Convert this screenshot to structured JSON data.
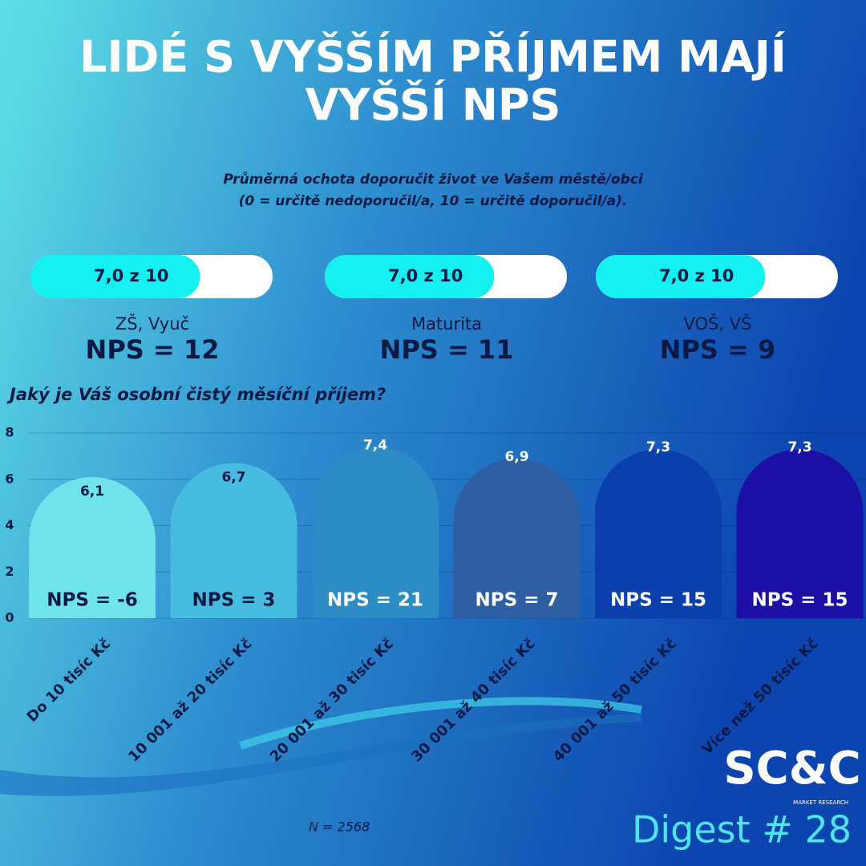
{
  "header": {
    "title_lines": [
      "LIDÉ S VYŠŠÍM PŘÍJMEM MAJÍ",
      "VYŠŠÍ NPS"
    ],
    "subtitle_lines": [
      "Průměrná ochota doporučit život ve Vašem městě/obci",
      "(0 = určitě nedoporučil/a, 10 = určitě doporučil/a)."
    ]
  },
  "education": [
    {
      "value": 7.0,
      "max": 10,
      "value_label": "7,0 z 10",
      "label": "ZŠ, Vyuč",
      "nps": "NPS = 12"
    },
    {
      "value": 7.0,
      "max": 10,
      "value_label": "7,0 z 10",
      "label": "Maturita",
      "nps": "NPS = 11"
    },
    {
      "value": 7.0,
      "max": 10,
      "value_label": "7,0 z 10",
      "label": "VOŠ, VŠ",
      "nps": "NPS = 9"
    }
  ],
  "chart_data": {
    "type": "bar",
    "title": "Jaký je Váš osobní čistý měsíční příjem?",
    "categories": [
      "Do 10 tisíc Kč",
      "10 001 až 20 tisíc Kč",
      "20 001 až 30 tisíc Kč",
      "30 001 až 40 tisíc Kč",
      "40 001 až 50 tisíc Kč",
      "Více než 50 tisíc Kč"
    ],
    "values": [
      6.1,
      6.7,
      7.4,
      6.9,
      7.3,
      7.3
    ],
    "value_labels": [
      "6,1",
      "6,7",
      "7,4",
      "6,9",
      "7,3",
      "7,3"
    ],
    "nps_labels": [
      "NPS = -6",
      "NPS = 3",
      "NPS = 21",
      "NPS = 7",
      "NPS = 15",
      "NPS = 15"
    ],
    "colors": [
      "#6ee3ea",
      "#46bde0",
      "#2c8cc4",
      "#2d5fa2",
      "#0b3fae",
      "#1c0fa6"
    ],
    "ylim": [
      0,
      8
    ],
    "yticks": [
      0,
      2,
      4,
      6,
      8
    ],
    "grid": true
  },
  "footer": {
    "n": "N  = 2568",
    "logo": "SC&C",
    "logo_sub": "MARKET RESEARCH",
    "digest": "Digest # 28"
  }
}
